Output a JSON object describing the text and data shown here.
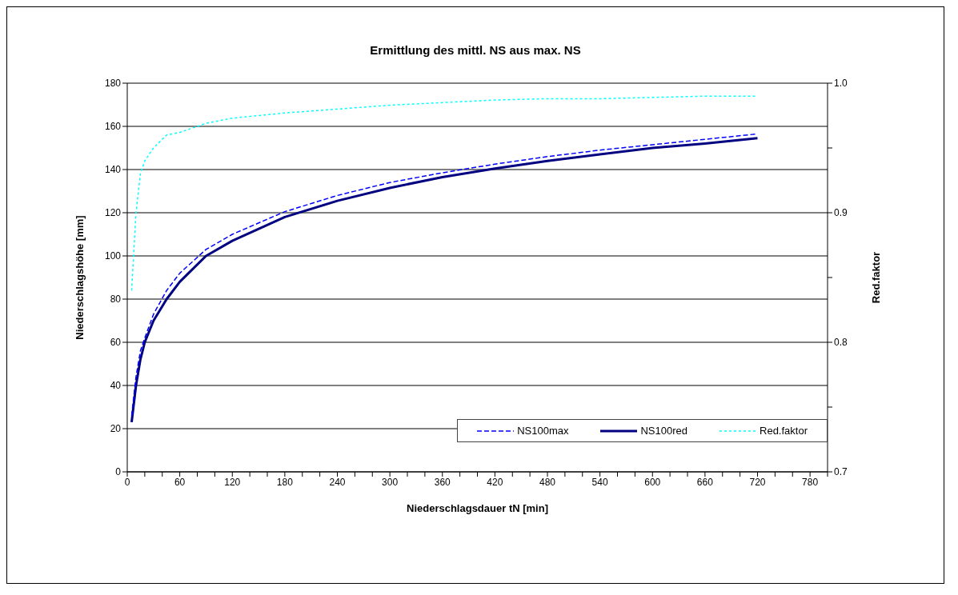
{
  "chart_data": {
    "type": "line",
    "title": "Ermittlung des mittl. NS aus max. NS",
    "xlabel": "Niederschlagsdauer tN [min]",
    "ylabel": "Niederschlagshöhe [mm]",
    "y2label": "Red.faktor",
    "x": [
      5,
      10,
      15,
      20,
      30,
      45,
      60,
      90,
      120,
      180,
      240,
      300,
      360,
      420,
      480,
      540,
      600,
      660,
      720
    ],
    "series": [
      {
        "name": "NS100max",
        "color": "#0000ff",
        "line_style": "dashed",
        "values": [
          26,
          44,
          56,
          62,
          73,
          84,
          92,
          103,
          110,
          120.5,
          128,
          134,
          138.5,
          142.5,
          146,
          149,
          151.5,
          154,
          156.5
        ]
      },
      {
        "name": "NS100red",
        "color": "#000080",
        "line_style": "solid",
        "values": [
          23,
          40,
          52,
          60,
          70,
          80,
          88,
          100,
          107,
          118,
          125.5,
          131.5,
          136.5,
          140.5,
          144,
          147,
          150,
          152,
          154.5
        ]
      },
      {
        "name": "Red.faktor",
        "color": "#00ffff",
        "line_style": "dotted",
        "axis": "y2",
        "values": [
          0.84,
          0.9,
          0.93,
          0.94,
          0.95,
          0.96,
          0.962,
          0.969,
          0.973,
          0.977,
          0.98,
          0.983,
          0.985,
          0.987,
          0.988,
          0.988,
          0.989,
          0.99,
          0.99
        ]
      }
    ],
    "xlim": [
      0,
      800
    ],
    "xticks": [
      0,
      {
        "value": 20,
        "label": null
      },
      {
        "value": 40,
        "label": null
      },
      60,
      {
        "value": 80,
        "label": null
      },
      {
        "value": 100,
        "label": null
      },
      120,
      {
        "value": 140,
        "label": null
      },
      {
        "value": 160,
        "label": null
      },
      180,
      {
        "value": 200,
        "label": null
      },
      {
        "value": 220,
        "label": null
      },
      240,
      {
        "value": 260,
        "label": null
      },
      {
        "value": 280,
        "label": null
      },
      300,
      {
        "value": 320,
        "label": null
      },
      {
        "value": 340,
        "label": null
      },
      360,
      {
        "value": 380,
        "label": null
      },
      {
        "value": 400,
        "label": null
      },
      420,
      {
        "value": 440,
        "label": null
      },
      {
        "value": 460,
        "label": null
      },
      480,
      {
        "value": 500,
        "label": null
      },
      {
        "value": 520,
        "label": null
      },
      540,
      {
        "value": 560,
        "label": null
      },
      {
        "value": 580,
        "label": null
      },
      600,
      {
        "value": 620,
        "label": null
      },
      {
        "value": 640,
        "label": null
      },
      660,
      {
        "value": 680,
        "label": null
      },
      {
        "value": 700,
        "label": null
      },
      720,
      {
        "value": 740,
        "label": null
      },
      {
        "value": 760,
        "label": null
      },
      780,
      {
        "value": 800,
        "label": null
      }
    ],
    "ylim": [
      0,
      180
    ],
    "yticks": [
      0,
      20,
      40,
      60,
      80,
      100,
      120,
      140,
      160,
      180
    ],
    "y2lim": [
      0.7,
      1
    ],
    "y2ticks": [
      0.7,
      {
        "value": 0.75,
        "label": null
      },
      0.8,
      {
        "value": 0.85,
        "label": null
      },
      0.9,
      {
        "value": 0.95,
        "label": null
      },
      {
        "value": 1,
        "label": "1.0"
      }
    ],
    "grid": "y",
    "legend": "bottom right"
  }
}
